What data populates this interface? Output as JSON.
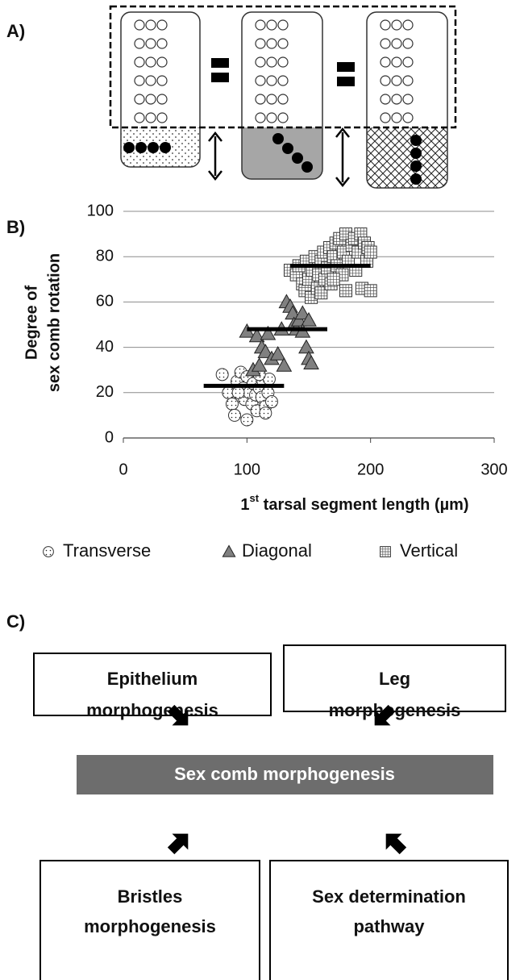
{
  "panel_a": {
    "label": "A)"
  },
  "chart_data": {
    "type": "scatter",
    "panel_label": "B)",
    "x_label": {
      "base": "1",
      "sup": "st",
      "rest": " tarsal segment length (µm)"
    },
    "y_label": [
      "Degree of",
      "sex comb rotation"
    ],
    "xlim": [
      0,
      300
    ],
    "xticks": [
      0,
      100,
      200,
      300
    ],
    "ylim": [
      0,
      100
    ],
    "yticks": [
      0,
      20,
      40,
      60,
      80,
      100
    ],
    "grid": true,
    "series": [
      {
        "name": "Transverse",
        "color": "#ffffff",
        "marker": "circle",
        "mean": 23,
        "mean_range": [
          65,
          130
        ],
        "x": [
          80,
          85,
          88,
          90,
          92,
          95,
          97,
          98,
          100,
          100,
          102,
          104,
          105,
          107,
          108,
          110,
          112,
          113,
          115,
          115,
          117,
          118,
          120,
          110,
          93
        ],
        "y": [
          28,
          20,
          15,
          10,
          25,
          29,
          22,
          17,
          8,
          27,
          20,
          15,
          24,
          19,
          12,
          22,
          18,
          25,
          14,
          11,
          20,
          26,
          16,
          28,
          20
        ]
      },
      {
        "name": "Diagonal",
        "color": "#808080",
        "marker": "triangle",
        "mean": 48,
        "mean_range": [
          100,
          165
        ],
        "x": [
          100,
          105,
          108,
          110,
          112,
          115,
          117,
          120,
          125,
          128,
          130,
          132,
          135,
          137,
          138,
          140,
          142,
          145,
          148,
          150,
          152,
          150,
          145
        ],
        "y": [
          47,
          30,
          45,
          32,
          40,
          38,
          46,
          35,
          37,
          48,
          32,
          60,
          58,
          55,
          50,
          48,
          52,
          55,
          40,
          35,
          33,
          52,
          47
        ]
      },
      {
        "name": "Vertical",
        "color": "#ffffff",
        "marker": "square",
        "mean": 76,
        "mean_range": [
          135,
          200
        ],
        "x": [
          135,
          140,
          142,
          145,
          147,
          148,
          150,
          152,
          153,
          155,
          157,
          158,
          160,
          160,
          162,
          163,
          165,
          167,
          168,
          170,
          172,
          173,
          175,
          177,
          178,
          180,
          180,
          182,
          185,
          187,
          188,
          190,
          192,
          193,
          195,
          197,
          198,
          200,
          200,
          170
        ],
        "y": [
          74,
          72,
          76,
          68,
          65,
          78,
          70,
          62,
          74,
          80,
          66,
          72,
          64,
          78,
          82,
          70,
          75,
          84,
          68,
          80,
          86,
          76,
          88,
          72,
          82,
          65,
          90,
          78,
          85,
          88,
          74,
          82,
          90,
          66,
          86,
          78,
          84,
          65,
          82,
          70
        ]
      }
    ]
  },
  "panel_c": {
    "label": "C)",
    "boxes": [
      {
        "lines": [
          "Epithelium",
          "morphogenesis"
        ]
      },
      {
        "lines": [
          "Leg",
          "morphogenesis"
        ]
      },
      {
        "lines": [
          "Bristles",
          "morphogenesis"
        ]
      },
      {
        "lines": [
          "Sex determination",
          "pathway"
        ]
      }
    ],
    "center": "Sex comb morphogenesis"
  }
}
